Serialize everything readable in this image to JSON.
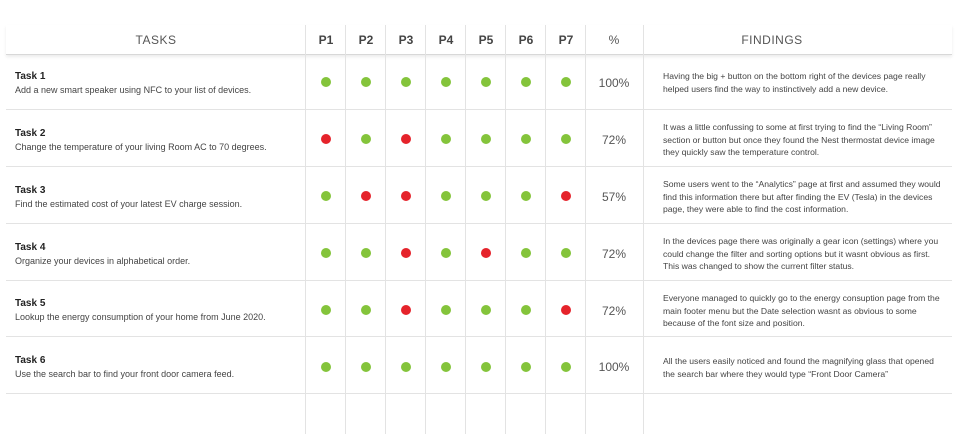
{
  "header": {
    "tasks": "TASKS",
    "participants": [
      "P1",
      "P2",
      "P3",
      "P4",
      "P5",
      "P6",
      "P7"
    ],
    "percent": "%",
    "findings": "FINDINGS"
  },
  "colors": {
    "pass": "#84c43b",
    "fail": "#e5232b"
  },
  "rows": [
    {
      "title": "Task 1",
      "description": "Add a new smart speaker using NFC to your list of devices.",
      "results": [
        "pass",
        "pass",
        "pass",
        "pass",
        "pass",
        "pass",
        "pass"
      ],
      "percent": "100%",
      "finding": "Having the big + button on the bottom right of the devices page really helped users find the way to instinctively add a new device."
    },
    {
      "title": "Task 2",
      "description": "Change the temperature of your living Room AC to 70 degrees.",
      "results": [
        "fail",
        "pass",
        "fail",
        "pass",
        "pass",
        "pass",
        "pass"
      ],
      "percent": "72%",
      "finding": "It was a little confussing to some at first trying to find the “Living Room” section or button but once they found the Nest thermostat device image they quickly saw the temperature control."
    },
    {
      "title": "Task 3",
      "description": "Find the estimated cost of your latest EV charge session.",
      "results": [
        "pass",
        "fail",
        "fail",
        "pass",
        "pass",
        "pass",
        "fail"
      ],
      "percent": "57%",
      "finding": "Some users went to the “Analytics” page at first and assumed they would find this information there but after finding the EV (Tesla) in the devices page, they were able to find the cost information."
    },
    {
      "title": "Task 4",
      "description": "Organize your devices in alphabetical order.",
      "results": [
        "pass",
        "pass",
        "fail",
        "pass",
        "fail",
        "pass",
        "pass"
      ],
      "percent": "72%",
      "finding": "In the devices page there was originally a gear icon (settings) where you could change the filter and sorting options but it wasnt obvious as first. This was changed to show the current filter status."
    },
    {
      "title": "Task 5",
      "description": "Lookup the energy consumption of your home from June 2020.",
      "results": [
        "pass",
        "pass",
        "fail",
        "pass",
        "pass",
        "pass",
        "fail"
      ],
      "percent": "72%",
      "finding": "Everyone managed to quickly go to the energy consuption page from the main footer menu but the Date selection wasnt as obvious to some because of the font size and position."
    },
    {
      "title": "Task 6",
      "description": "Use the search bar to find your front door camera feed.",
      "results": [
        "pass",
        "pass",
        "pass",
        "pass",
        "pass",
        "pass",
        "pass"
      ],
      "percent": "100%",
      "finding": "All the users easily noticed and found the magnifying glass that opened the search bar where they would type “Front Door Camera”"
    }
  ]
}
